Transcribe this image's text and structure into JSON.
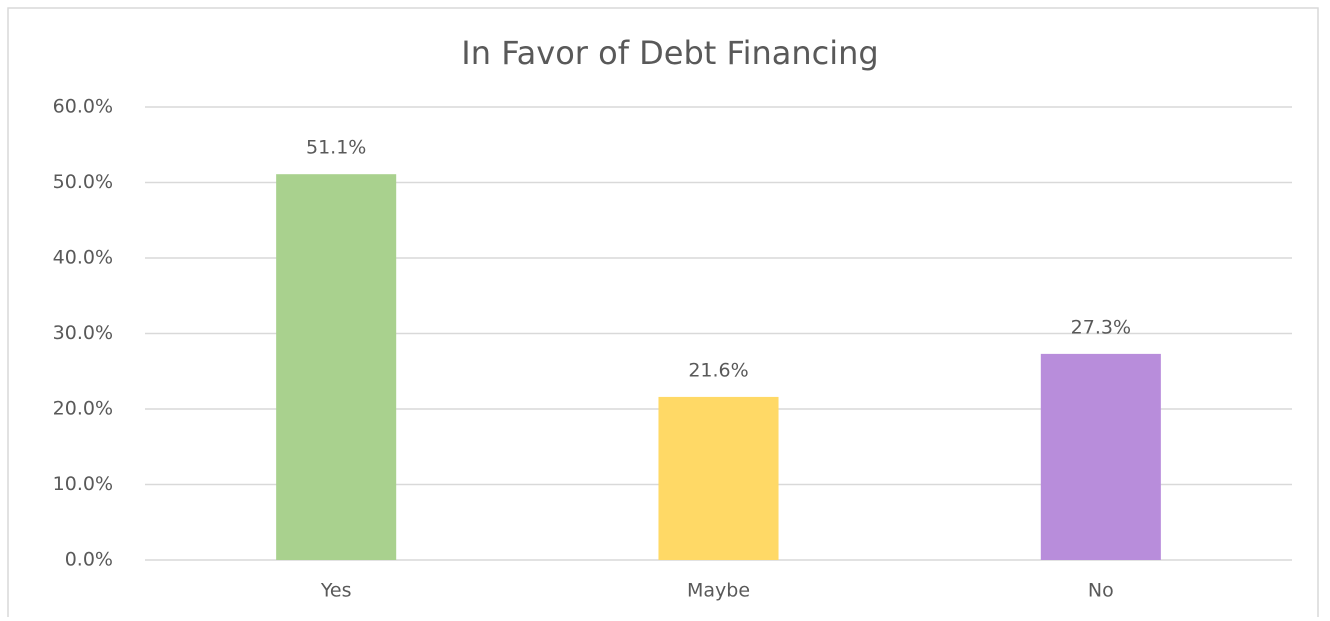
{
  "chart_data": {
    "type": "bar",
    "title": "In Favor of Debt Financing",
    "categories": [
      "Yes",
      "Maybe",
      "No"
    ],
    "values": [
      51.1,
      21.6,
      27.3
    ],
    "value_labels": [
      "51.1%",
      "21.6%",
      "27.3%"
    ],
    "colors": [
      "#a9d18e",
      "#ffd966",
      "#b88ddb"
    ],
    "ylim": [
      0,
      60
    ],
    "yticks": [
      {
        "value": 0,
        "label": "0.0%"
      },
      {
        "value": 10,
        "label": "10.0%"
      },
      {
        "value": 20,
        "label": "20.0%"
      },
      {
        "value": 30,
        "label": "30.0%"
      },
      {
        "value": 40,
        "label": "40.0%"
      },
      {
        "value": 50,
        "label": "50.0%"
      },
      {
        "value": 60,
        "label": "60.0%"
      }
    ],
    "grid": true
  }
}
